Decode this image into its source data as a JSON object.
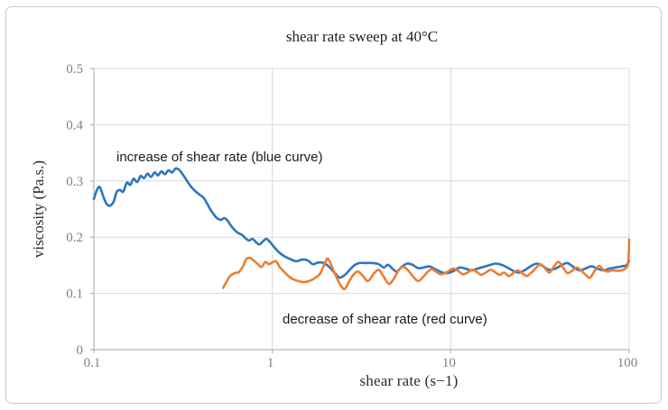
{
  "figure": {
    "annotations": {
      "increase": "increase of shear rate (blue curve)",
      "decrease": "decrease of shear rate (red curve)"
    }
  },
  "chart_data": {
    "type": "line",
    "title": "shear rate sweep at 40°C",
    "xlabel": "shear rate  (s−1)",
    "ylabel": "viscosity (Pa.s.)",
    "x_scale": "log",
    "xlim": [
      0.1,
      100
    ],
    "ylim": [
      0,
      0.5
    ],
    "grid": true,
    "legend": "none (labels drawn as in-plot annotations)",
    "x_ticks": [
      {
        "v": 0.1,
        "label": "0.1"
      },
      {
        "v": 1,
        "label": "1"
      },
      {
        "v": 10,
        "label": "10"
      },
      {
        "v": 100,
        "label": "100"
      }
    ],
    "y_ticks": [
      {
        "v": 0,
        "label": "0"
      },
      {
        "v": 0.1,
        "label": "0.1"
      },
      {
        "v": 0.2,
        "label": "0.2"
      },
      {
        "v": 0.3,
        "label": "0.3"
      },
      {
        "v": 0.4,
        "label": "0.4"
      },
      {
        "v": 0.5,
        "label": "0.5"
      }
    ],
    "colors": {
      "increase_curve": "#2e75c0",
      "decrease_curve": "#ed7d31",
      "gridline": "#d9d9d9",
      "axis_line": "#a6a6a6",
      "tick_label": "#7f7f7f"
    },
    "series": [
      {
        "name": "increase of shear rate",
        "color_key": "increase_curve",
        "points": [
          [
            0.1,
            0.268
          ],
          [
            0.104,
            0.284
          ],
          [
            0.108,
            0.289
          ],
          [
            0.113,
            0.272
          ],
          [
            0.118,
            0.259
          ],
          [
            0.123,
            0.256
          ],
          [
            0.129,
            0.263
          ],
          [
            0.134,
            0.28
          ],
          [
            0.14,
            0.284
          ],
          [
            0.146,
            0.281
          ],
          [
            0.153,
            0.297
          ],
          [
            0.16,
            0.293
          ],
          [
            0.167,
            0.304
          ],
          [
            0.175,
            0.298
          ],
          [
            0.183,
            0.309
          ],
          [
            0.191,
            0.305
          ],
          [
            0.2,
            0.313
          ],
          [
            0.209,
            0.307
          ],
          [
            0.219,
            0.315
          ],
          [
            0.229,
            0.31
          ],
          [
            0.239,
            0.317
          ],
          [
            0.25,
            0.312
          ],
          [
            0.262,
            0.319
          ],
          [
            0.274,
            0.315
          ],
          [
            0.287,
            0.322
          ],
          [
            0.3,
            0.32
          ],
          [
            0.314,
            0.312
          ],
          [
            0.328,
            0.303
          ],
          [
            0.344,
            0.293
          ],
          [
            0.359,
            0.286
          ],
          [
            0.376,
            0.28
          ],
          [
            0.393,
            0.275
          ],
          [
            0.412,
            0.27
          ],
          [
            0.431,
            0.26
          ],
          [
            0.45,
            0.249
          ],
          [
            0.471,
            0.24
          ],
          [
            0.493,
            0.233
          ],
          [
            0.516,
            0.231
          ],
          [
            0.54,
            0.234
          ],
          [
            0.565,
            0.228
          ],
          [
            0.591,
            0.219
          ],
          [
            0.618,
            0.212
          ],
          [
            0.647,
            0.207
          ],
          [
            0.677,
            0.204
          ],
          [
            0.708,
            0.198
          ],
          [
            0.741,
            0.194
          ],
          [
            0.775,
            0.197
          ],
          [
            0.811,
            0.191
          ],
          [
            0.848,
            0.187
          ],
          [
            0.888,
            0.193
          ],
          [
            0.929,
            0.197
          ],
          [
            0.972,
            0.191
          ],
          [
            1.02,
            0.183
          ],
          [
            1.09,
            0.173
          ],
          [
            1.17,
            0.166
          ],
          [
            1.26,
            0.161
          ],
          [
            1.36,
            0.157
          ],
          [
            1.46,
            0.16
          ],
          [
            1.57,
            0.159
          ],
          [
            1.69,
            0.152
          ],
          [
            1.81,
            0.155
          ],
          [
            1.95,
            0.154
          ],
          [
            2.1,
            0.146
          ],
          [
            2.26,
            0.135
          ],
          [
            2.38,
            0.128
          ],
          [
            2.53,
            0.132
          ],
          [
            2.7,
            0.141
          ],
          [
            2.88,
            0.15
          ],
          [
            3.08,
            0.154
          ],
          [
            3.36,
            0.154
          ],
          [
            3.66,
            0.154
          ],
          [
            3.95,
            0.152
          ],
          [
            4.22,
            0.146
          ],
          [
            4.45,
            0.151
          ],
          [
            4.75,
            0.143
          ],
          [
            5.0,
            0.139
          ],
          [
            5.3,
            0.147
          ],
          [
            5.7,
            0.153
          ],
          [
            6.1,
            0.151
          ],
          [
            6.55,
            0.145
          ],
          [
            7.05,
            0.146
          ],
          [
            7.6,
            0.148
          ],
          [
            8.2,
            0.143
          ],
          [
            8.85,
            0.138
          ],
          [
            9.55,
            0.136
          ],
          [
            10.4,
            0.14
          ],
          [
            11.2,
            0.146
          ],
          [
            12.1,
            0.144
          ],
          [
            13.1,
            0.141
          ],
          [
            14.1,
            0.144
          ],
          [
            15.2,
            0.147
          ],
          [
            16.4,
            0.15
          ],
          [
            17.8,
            0.153
          ],
          [
            19.2,
            0.151
          ],
          [
            20.8,
            0.146
          ],
          [
            22.4,
            0.14
          ],
          [
            24.2,
            0.137
          ],
          [
            26.2,
            0.142
          ],
          [
            28.3,
            0.149
          ],
          [
            30.6,
            0.153
          ],
          [
            33.0,
            0.148
          ],
          [
            35.7,
            0.142
          ],
          [
            38.6,
            0.144
          ],
          [
            41.7,
            0.15
          ],
          [
            45.0,
            0.154
          ],
          [
            48.7,
            0.147
          ],
          [
            52.6,
            0.141
          ],
          [
            56.8,
            0.144
          ],
          [
            61.4,
            0.148
          ],
          [
            66.3,
            0.144
          ],
          [
            71.7,
            0.141
          ],
          [
            77.4,
            0.144
          ],
          [
            83.7,
            0.146
          ],
          [
            90.4,
            0.148
          ],
          [
            96.5,
            0.15
          ],
          [
            100,
            0.158
          ]
        ]
      },
      {
        "name": "decrease of shear rate",
        "color_key": "decrease_curve",
        "points": [
          [
            0.53,
            0.11
          ],
          [
            0.555,
            0.121
          ],
          [
            0.58,
            0.131
          ],
          [
            0.615,
            0.136
          ],
          [
            0.65,
            0.138
          ],
          [
            0.685,
            0.148
          ],
          [
            0.715,
            0.161
          ],
          [
            0.75,
            0.163
          ],
          [
            0.79,
            0.158
          ],
          [
            0.83,
            0.152
          ],
          [
            0.87,
            0.147
          ],
          [
            0.915,
            0.156
          ],
          [
            0.955,
            0.152
          ],
          [
            1.0,
            0.155
          ],
          [
            1.05,
            0.157
          ],
          [
            1.1,
            0.147
          ],
          [
            1.16,
            0.139
          ],
          [
            1.23,
            0.131
          ],
          [
            1.31,
            0.125
          ],
          [
            1.4,
            0.122
          ],
          [
            1.5,
            0.12
          ],
          [
            1.61,
            0.122
          ],
          [
            1.73,
            0.127
          ],
          [
            1.85,
            0.135
          ],
          [
            1.96,
            0.152
          ],
          [
            2.05,
            0.162
          ],
          [
            2.16,
            0.147
          ],
          [
            2.28,
            0.13
          ],
          [
            2.42,
            0.114
          ],
          [
            2.55,
            0.108
          ],
          [
            2.7,
            0.122
          ],
          [
            2.86,
            0.134
          ],
          [
            3.02,
            0.139
          ],
          [
            3.2,
            0.132
          ],
          [
            3.44,
            0.122
          ],
          [
            3.7,
            0.135
          ],
          [
            3.95,
            0.142
          ],
          [
            4.2,
            0.13
          ],
          [
            4.5,
            0.117
          ],
          [
            4.8,
            0.126
          ],
          [
            5.1,
            0.141
          ],
          [
            5.45,
            0.147
          ],
          [
            5.8,
            0.14
          ],
          [
            6.15,
            0.13
          ],
          [
            6.55,
            0.122
          ],
          [
            6.95,
            0.128
          ],
          [
            7.35,
            0.137
          ],
          [
            7.8,
            0.143
          ],
          [
            8.25,
            0.139
          ],
          [
            8.75,
            0.134
          ],
          [
            9.3,
            0.136
          ],
          [
            9.85,
            0.141
          ],
          [
            10.4,
            0.144
          ],
          [
            11.1,
            0.139
          ],
          [
            11.7,
            0.134
          ],
          [
            12.4,
            0.137
          ],
          [
            13.2,
            0.142
          ],
          [
            14.0,
            0.138
          ],
          [
            14.8,
            0.133
          ],
          [
            15.7,
            0.137
          ],
          [
            16.7,
            0.142
          ],
          [
            17.7,
            0.138
          ],
          [
            18.8,
            0.133
          ],
          [
            19.9,
            0.137
          ],
          [
            21.1,
            0.131
          ],
          [
            22.4,
            0.136
          ],
          [
            23.7,
            0.141
          ],
          [
            25.1,
            0.136
          ],
          [
            26.7,
            0.131
          ],
          [
            28.3,
            0.137
          ],
          [
            30.0,
            0.145
          ],
          [
            31.8,
            0.152
          ],
          [
            33.7,
            0.145
          ],
          [
            35.7,
            0.137
          ],
          [
            37.9,
            0.148
          ],
          [
            40.1,
            0.156
          ],
          [
            42.6,
            0.146
          ],
          [
            45.1,
            0.136
          ],
          [
            47.8,
            0.14
          ],
          [
            50.7,
            0.146
          ],
          [
            53.8,
            0.141
          ],
          [
            57.0,
            0.133
          ],
          [
            60.4,
            0.128
          ],
          [
            64.0,
            0.14
          ],
          [
            67.9,
            0.149
          ],
          [
            71.9,
            0.141
          ],
          [
            76.3,
            0.139
          ],
          [
            80.8,
            0.141
          ],
          [
            85.7,
            0.14
          ],
          [
            90.8,
            0.141
          ],
          [
            94.0,
            0.143
          ],
          [
            97.0,
            0.147
          ],
          [
            99.0,
            0.158
          ],
          [
            100,
            0.196
          ]
        ]
      }
    ]
  }
}
